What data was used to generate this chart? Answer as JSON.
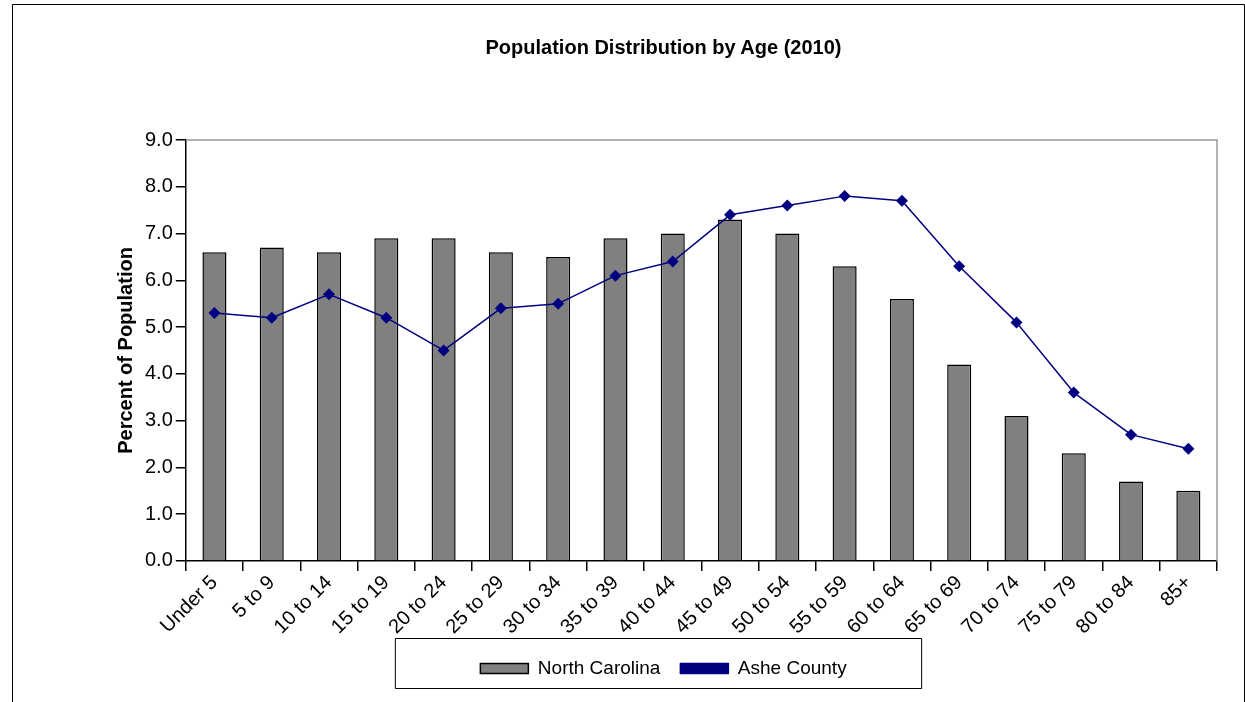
{
  "chart_data": {
    "type": "bar",
    "title": "Population Distribution by Age (2010)",
    "ylabel": "Percent of Population",
    "categories": [
      "Under 5",
      "5 to 9",
      "10 to 14",
      "15 to 19",
      "20 to 24",
      "25 to 29",
      "30 to 34",
      "35 to 39",
      "40 to 44",
      "45 to 49",
      "50 to 54",
      "55 to 59",
      "60 to 64",
      "65 to 69",
      "70 to 74",
      "75 to 79",
      "80 to 84",
      "85+"
    ],
    "series": [
      {
        "name": "North Carolina",
        "color": "#808080",
        "values": [
          6.6,
          6.7,
          6.6,
          6.9,
          6.9,
          6.6,
          6.5,
          6.9,
          7.0,
          7.3,
          7.0,
          6.3,
          5.6,
          4.2,
          3.1,
          2.3,
          1.7,
          1.5
        ]
      },
      {
        "name": "Ashe County",
        "type": "line",
        "color": "#000080",
        "marker": "diamond",
        "values": [
          5.3,
          5.2,
          5.7,
          5.2,
          4.5,
          5.4,
          5.5,
          6.1,
          6.4,
          7.4,
          7.6,
          7.8,
          7.7,
          6.3,
          5.1,
          3.6,
          2.7,
          2.4
        ]
      }
    ],
    "ylim": [
      0,
      9
    ],
    "yticks": [
      {
        "value": 0,
        "label": "0.0"
      },
      {
        "value": 1,
        "label": "1.0"
      },
      {
        "value": 2,
        "label": "2.0"
      },
      {
        "value": 3,
        "label": "3.0"
      },
      {
        "value": 4,
        "label": "4.0"
      },
      {
        "value": 5,
        "label": "5.0"
      },
      {
        "value": 6,
        "label": "6.0"
      },
      {
        "value": 7,
        "label": "7.0"
      },
      {
        "value": 8,
        "label": "8.0"
      },
      {
        "value": 9,
        "label": "9.0"
      }
    ],
    "grid": false,
    "legend": "bottom",
    "line_style": "solid"
  }
}
